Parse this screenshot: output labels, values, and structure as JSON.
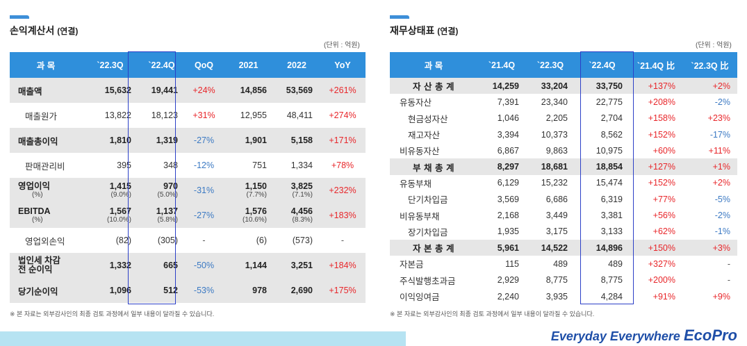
{
  "income": {
    "title": "손익계산서",
    "subtitle": "(연결)",
    "unit": "(단위 : 억원)",
    "headers": [
      "과 목",
      "`22.3Q",
      "`22.4Q",
      "QoQ",
      "2021",
      "2022",
      "YoY"
    ],
    "rows": [
      {
        "label": "매출액",
        "q3": "15,632",
        "q4": "19,441",
        "qoq": "+24%",
        "y21": "14,856",
        "y22": "53,569",
        "yoy": "+261%"
      },
      {
        "label": "매출원가",
        "q3": "13,822",
        "q4": "18,123",
        "qoq": "+31%",
        "y21": "12,955",
        "y22": "48,411",
        "yoy": "+274%"
      },
      {
        "label": "매출총이익",
        "q3": "1,810",
        "q4": "1,319",
        "qoq": "-27%",
        "y21": "1,901",
        "y22": "5,158",
        "yoy": "+171%"
      },
      {
        "label": "판매관리비",
        "q3": "395",
        "q4": "348",
        "qoq": "-12%",
        "y21": "751",
        "y22": "1,334",
        "yoy": "+78%"
      },
      {
        "label": "영업이익",
        "pct_label": "(%)",
        "q3": "1,415",
        "q3_pct": "(9.0%)",
        "q4": "970",
        "q4_pct": "(5.0%)",
        "qoq": "-31%",
        "y21": "1,150",
        "y21_pct": "(7.7%)",
        "y22": "3,825",
        "y22_pct": "(7.1%)",
        "yoy": "+232%"
      },
      {
        "label": "EBITDA",
        "pct_label": "(%)",
        "q3": "1,567",
        "q3_pct": "(10.0%)",
        "q4": "1,137",
        "q4_pct": "(5.8%)",
        "qoq": "-27%",
        "y21": "1,576",
        "y21_pct": "(10.6%)",
        "y22": "4,456",
        "y22_pct": "(8.3%)",
        "yoy": "+183%"
      },
      {
        "label": "영업외손익",
        "q3": "(82)",
        "q4": "(305)",
        "qoq": "-",
        "y21": "(6)",
        "y22": "(573)",
        "yoy": "-"
      },
      {
        "label_line1": "법인세 차감",
        "label_line2": "전 순이익",
        "q3": "1,332",
        "q4": "665",
        "qoq": "-50%",
        "y21": "1,144",
        "y22": "3,251",
        "yoy": "+184%"
      },
      {
        "label": "당기순이익",
        "q3": "1,096",
        "q4": "512",
        "qoq": "-53%",
        "y21": "978",
        "y22": "2,690",
        "yoy": "+175%"
      }
    ],
    "footnote": "※ 본 자료는 외부감사인의 최종 검토 과정에서 일부 내용이 달라질 수 있습니다."
  },
  "balance": {
    "title": "재무상태표",
    "subtitle": "(연결)",
    "unit": "(단위 : 억원)",
    "headers": [
      "과 목",
      "`21.4Q",
      "`22.3Q",
      "`22.4Q",
      "`21.4Q 比",
      "`22.3Q 比"
    ],
    "rows": [
      {
        "label": "자 산 총 계",
        "a": "14,259",
        "b": "33,204",
        "c": "33,750",
        "d": "+137%",
        "e": "+2%"
      },
      {
        "label": "유동자산",
        "a": "7,391",
        "b": "23,340",
        "c": "22,775",
        "d": "+208%",
        "e": "-2%"
      },
      {
        "label": "현금성자산",
        "a": "1,046",
        "b": "2,205",
        "c": "2,704",
        "d": "+158%",
        "e": "+23%"
      },
      {
        "label": "재고자산",
        "a": "3,394",
        "b": "10,373",
        "c": "8,562",
        "d": "+152%",
        "e": "-17%"
      },
      {
        "label": "비유동자산",
        "a": "6,867",
        "b": "9,863",
        "c": "10,975",
        "d": "+60%",
        "e": "+11%"
      },
      {
        "label": "부 채 총 계",
        "a": "8,297",
        "b": "18,681",
        "c": "18,854",
        "d": "+127%",
        "e": "+1%"
      },
      {
        "label": "유동부채",
        "a": "6,129",
        "b": "15,232",
        "c": "15,474",
        "d": "+152%",
        "e": "+2%"
      },
      {
        "label": "단기차입금",
        "a": "3,569",
        "b": "6,686",
        "c": "6,319",
        "d": "+77%",
        "e": "-5%"
      },
      {
        "label": "비유동부채",
        "a": "2,168",
        "b": "3,449",
        "c": "3,381",
        "d": "+56%",
        "e": "-2%"
      },
      {
        "label": "장기차입금",
        "a": "1,935",
        "b": "3,175",
        "c": "3,133",
        "d": "+62%",
        "e": "-1%"
      },
      {
        "label": "자 본 총 계",
        "a": "5,961",
        "b": "14,522",
        "c": "14,896",
        "d": "+150%",
        "e": "+3%"
      },
      {
        "label": "자본금",
        "a": "115",
        "b": "489",
        "c": "489",
        "d": "+327%",
        "e": "-"
      },
      {
        "label": "주식발행초과금",
        "a": "2,929",
        "b": "8,775",
        "c": "8,775",
        "d": "+200%",
        "e": "-"
      },
      {
        "label": "이익잉여금",
        "a": "2,240",
        "b": "3,935",
        "c": "4,284",
        "d": "+91%",
        "e": "+9%"
      }
    ],
    "footnote": "※ 본 자료는 외부감사인의 최종 검토 과정에서 일부 내용이 달라질 수 있습니다."
  },
  "brand": {
    "tagline": "Everyday Everywhere",
    "logo": "EcoPro"
  },
  "colors": {
    "header_bg": "#2f8fdb",
    "positive": "#e8262a",
    "negative": "#3b79c3",
    "highlight_box": "#2b3fc7"
  }
}
